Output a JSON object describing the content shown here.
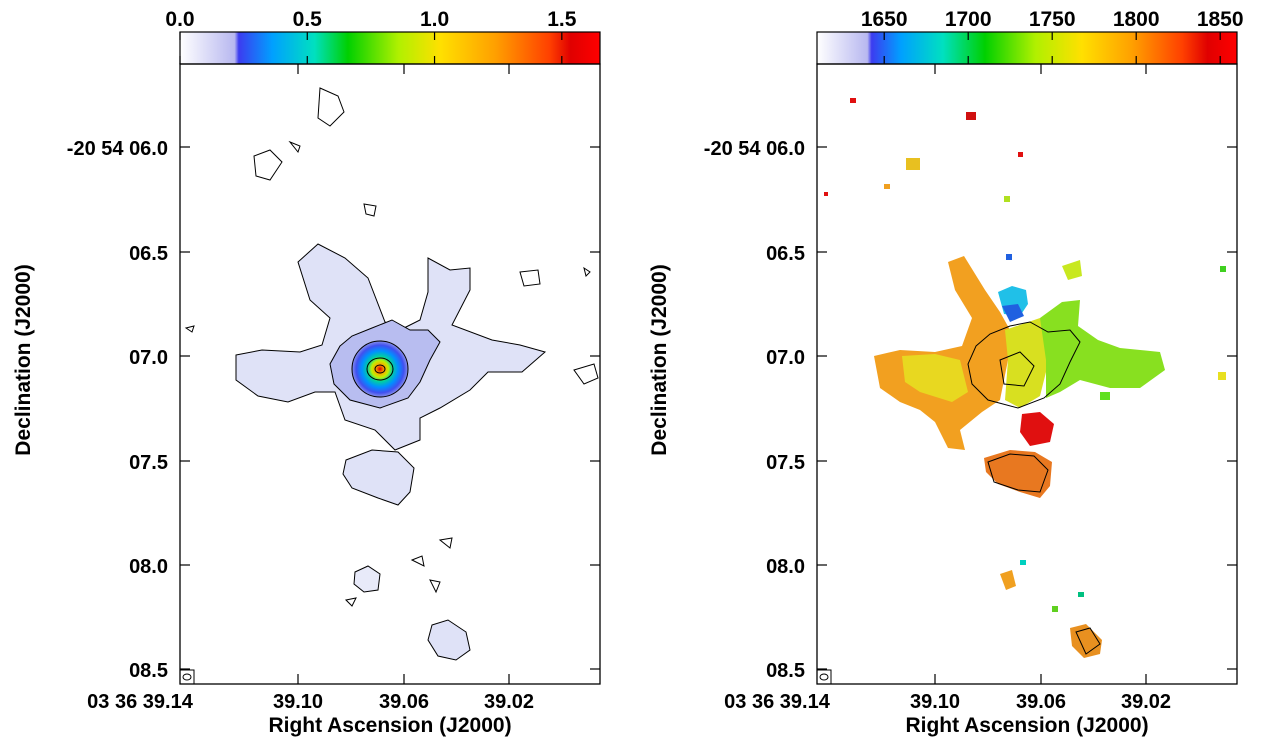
{
  "panels": [
    {
      "id": "left",
      "colorbar": {
        "min": 0.0,
        "max": 1.65,
        "ticks": [
          "0.0",
          "0.5",
          "1.0",
          "1.5"
        ],
        "tick_values": [
          0.0,
          0.5,
          1.0,
          1.5
        ]
      },
      "y_ticks": [
        "-20 54 06.0",
        "06.5",
        "07.0",
        "07.5",
        "08.0",
        "08.5"
      ],
      "x_ticks": [
        "03 36 39.14",
        "39.10",
        "39.06",
        "39.02"
      ],
      "ylabel": "Declination (J2000)",
      "xlabel": "Right Ascension (J2000)"
    },
    {
      "id": "right",
      "colorbar": {
        "min": 1610,
        "max": 1860,
        "ticks": [
          "1650",
          "1700",
          "1750",
          "1800",
          "1850"
        ],
        "tick_values": [
          1650,
          1700,
          1750,
          1800,
          1850
        ]
      },
      "y_ticks": [
        "-20 54 06.0",
        "06.5",
        "07.0",
        "07.5",
        "08.0",
        "08.5"
      ],
      "x_ticks": [
        "03 36 39.14",
        "39.10",
        "39.06",
        "39.02"
      ],
      "ylabel": "Declination (J2000)",
      "xlabel": "Right Ascension (J2000)"
    }
  ]
}
